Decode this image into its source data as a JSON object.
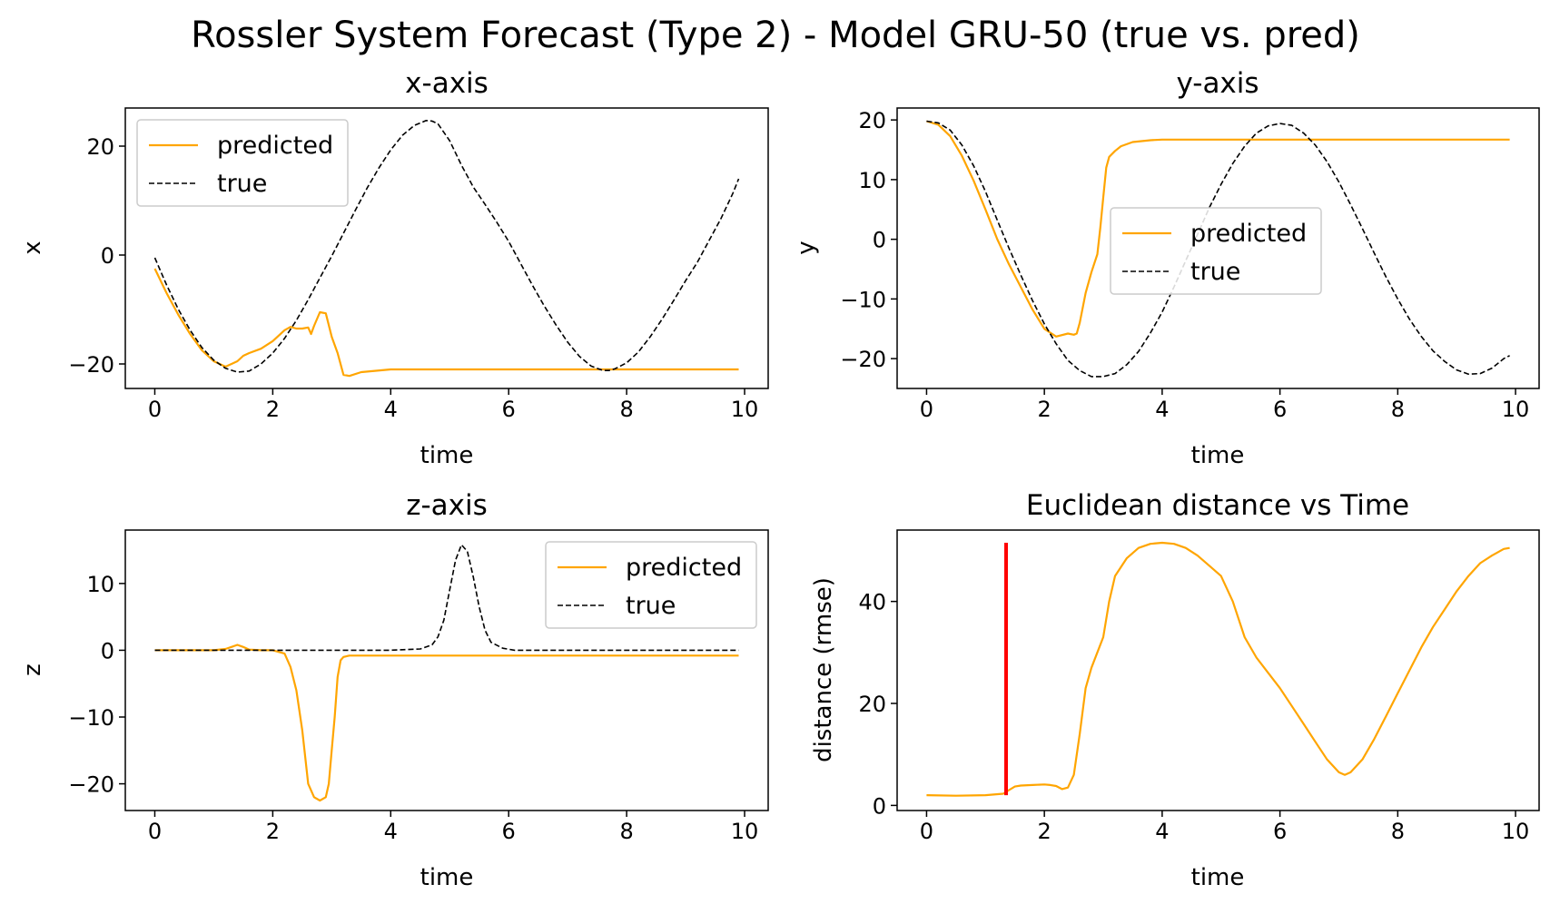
{
  "figure": {
    "title": "Rossler System Forecast (Type 2) - Model GRU-50 (true vs. pred)",
    "colors": {
      "predicted": "#ffa500",
      "true": "#000000",
      "marker": "#ff0000"
    }
  },
  "chart_data": [
    {
      "type": "line",
      "title": "x-axis",
      "xlabel": "time",
      "ylabel": "x",
      "xlim": [
        -0.5,
        10.4
      ],
      "ylim": [
        -24.5,
        27.0
      ],
      "xticks": [
        0,
        2,
        4,
        6,
        8,
        10
      ],
      "yticks": [
        -20,
        0,
        20
      ],
      "legend": {
        "position": "upper-left",
        "entries": [
          "predicted",
          "true"
        ]
      },
      "series": [
        {
          "name": "predicted",
          "style": "solid",
          "color": "#ffa500",
          "x": [
            0,
            0.2,
            0.4,
            0.6,
            0.8,
            1.0,
            1.2,
            1.4,
            1.5,
            1.6,
            1.8,
            2.0,
            2.2,
            2.3,
            2.4,
            2.5,
            2.6,
            2.65,
            2.7,
            2.8,
            2.9,
            3.0,
            3.1,
            3.2,
            3.3,
            3.5,
            4.0,
            5.0,
            6.0,
            7.0,
            8.0,
            9.0,
            9.9
          ],
          "y": [
            -2.5,
            -7,
            -11,
            -14.5,
            -17.5,
            -19.5,
            -20.5,
            -19.5,
            -18.5,
            -18,
            -17.2,
            -15.8,
            -13.8,
            -13.2,
            -13.5,
            -13.5,
            -13.3,
            -14.5,
            -13,
            -10.5,
            -10.7,
            -15,
            -18,
            -22,
            -22.2,
            -21.5,
            -21,
            -21,
            -21,
            -21,
            -21,
            -21,
            -21
          ]
        },
        {
          "name": "true",
          "style": "dashed",
          "color": "#000000",
          "x": [
            0,
            0.2,
            0.4,
            0.6,
            0.8,
            1.0,
            1.2,
            1.4,
            1.6,
            1.8,
            2.0,
            2.2,
            2.4,
            2.6,
            2.8,
            3.0,
            3.2,
            3.4,
            3.6,
            3.8,
            4.0,
            4.2,
            4.4,
            4.6,
            4.7,
            4.8,
            5.0,
            5.2,
            5.4,
            5.6,
            5.8,
            6.0,
            6.2,
            6.4,
            6.6,
            6.8,
            7.0,
            7.2,
            7.4,
            7.6,
            7.7,
            7.8,
            8.0,
            8.2,
            8.4,
            8.6,
            8.8,
            9.0,
            9.2,
            9.4,
            9.6,
            9.8,
            9.9
          ],
          "y": [
            -0.5,
            -5.5,
            -10,
            -13.8,
            -17,
            -19.3,
            -20.8,
            -21.5,
            -21.3,
            -20,
            -18,
            -15.3,
            -12,
            -8.2,
            -4.2,
            -0.2,
            4,
            8.2,
            12.3,
            16,
            19.3,
            22,
            23.8,
            24.7,
            24.6,
            24.1,
            21,
            16.5,
            12.5,
            9.3,
            6,
            2.5,
            -1.5,
            -5.5,
            -9.3,
            -12.8,
            -16,
            -18.6,
            -20.4,
            -21.2,
            -21.2,
            -20.9,
            -19.8,
            -17.8,
            -15,
            -11.8,
            -8.3,
            -4.7,
            -1.3,
            2.7,
            6.7,
            11.3,
            14
          ]
        }
      ]
    },
    {
      "type": "line",
      "title": "y-axis",
      "xlabel": "time",
      "ylabel": "y",
      "xlim": [
        -0.5,
        10.4
      ],
      "ylim": [
        -25.0,
        22.0
      ],
      "xticks": [
        0,
        2,
        4,
        6,
        8,
        10
      ],
      "yticks": [
        -20,
        -10,
        0,
        10,
        20
      ],
      "legend": {
        "position": "center",
        "entries": [
          "predicted",
          "true"
        ]
      },
      "series": [
        {
          "name": "predicted",
          "style": "solid",
          "color": "#ffa500",
          "x": [
            0,
            0.2,
            0.4,
            0.6,
            0.8,
            1.0,
            1.2,
            1.4,
            1.6,
            1.8,
            2.0,
            2.2,
            2.4,
            2.5,
            2.55,
            2.6,
            2.7,
            2.8,
            2.9,
            2.95,
            3.0,
            3.05,
            3.1,
            3.2,
            3.3,
            3.5,
            3.8,
            4.0,
            5.0,
            6.0,
            7.0,
            8.0,
            9.0,
            9.9
          ],
          "y": [
            19.8,
            19.2,
            17.3,
            14,
            9.8,
            5,
            0,
            -4.2,
            -8,
            -11.8,
            -15,
            -16.3,
            -15.8,
            -16,
            -15.8,
            -14,
            -9,
            -5.5,
            -2.5,
            2,
            7,
            12,
            13.8,
            14.8,
            15.6,
            16.3,
            16.6,
            16.7,
            16.7,
            16.7,
            16.7,
            16.7,
            16.7,
            16.7
          ]
        },
        {
          "name": "true",
          "style": "dashed",
          "color": "#000000",
          "x": [
            0,
            0.2,
            0.4,
            0.6,
            0.8,
            1.0,
            1.2,
            1.4,
            1.6,
            1.8,
            2.0,
            2.2,
            2.4,
            2.6,
            2.8,
            3.0,
            3.2,
            3.4,
            3.6,
            3.8,
            4.0,
            4.2,
            4.4,
            4.6,
            4.8,
            5.0,
            5.2,
            5.4,
            5.6,
            5.8,
            6.0,
            6.2,
            6.4,
            6.6,
            6.8,
            7.0,
            7.2,
            7.4,
            7.6,
            7.8,
            8.0,
            8.2,
            8.4,
            8.6,
            8.8,
            9.0,
            9.2,
            9.4,
            9.6,
            9.8,
            9.9
          ],
          "y": [
            19.8,
            19.5,
            18.3,
            15.8,
            12.3,
            8,
            3.2,
            -1.5,
            -6,
            -10.3,
            -14.2,
            -17.5,
            -20.3,
            -22,
            -23,
            -23,
            -22.5,
            -21,
            -18.8,
            -15.7,
            -12.2,
            -8,
            -3.6,
            0.8,
            5.3,
            9.2,
            12.7,
            15.6,
            17.8,
            19,
            19.4,
            19.1,
            17.8,
            15.8,
            13,
            9.6,
            5.8,
            1.8,
            -2.3,
            -6.3,
            -10,
            -13.4,
            -16.3,
            -18.7,
            -20.5,
            -21.9,
            -22.6,
            -22.5,
            -21.6,
            -20,
            -19.5
          ]
        }
      ]
    },
    {
      "type": "line",
      "title": "z-axis",
      "xlabel": "time",
      "ylabel": "z",
      "xlim": [
        -0.5,
        10.4
      ],
      "ylim": [
        -24.0,
        18.0
      ],
      "xticks": [
        0,
        2,
        4,
        6,
        8,
        10
      ],
      "yticks": [
        -20,
        -10,
        0,
        10
      ],
      "legend": {
        "position": "upper-right",
        "entries": [
          "predicted",
          "true"
        ]
      },
      "series": [
        {
          "name": "predicted",
          "style": "solid",
          "color": "#ffa500",
          "x": [
            0,
            1.0,
            1.2,
            1.3,
            1.4,
            1.5,
            1.6,
            1.8,
            2.0,
            2.2,
            2.3,
            2.4,
            2.5,
            2.6,
            2.7,
            2.8,
            2.9,
            2.95,
            3.0,
            3.05,
            3.1,
            3.15,
            3.2,
            3.3,
            3.5,
            4.0,
            5.0,
            6.0,
            7.0,
            8.0,
            9.0,
            9.9
          ],
          "y": [
            0,
            0,
            0.2,
            0.5,
            0.8,
            0.5,
            0.1,
            0,
            0,
            -0.5,
            -2.5,
            -6,
            -12,
            -20,
            -22,
            -22.5,
            -22,
            -20,
            -15,
            -10,
            -4,
            -1.5,
            -1,
            -0.8,
            -0.8,
            -0.8,
            -0.8,
            -0.8,
            -0.8,
            -0.8,
            -0.8,
            -0.8
          ]
        },
        {
          "name": "true",
          "style": "dashed",
          "color": "#000000",
          "x": [
            0,
            1.0,
            2.0,
            3.0,
            4.0,
            4.5,
            4.7,
            4.8,
            4.9,
            5.0,
            5.1,
            5.2,
            5.3,
            5.4,
            5.5,
            5.6,
            5.7,
            5.9,
            6.1,
            7.0,
            8.0,
            9.0,
            9.9
          ],
          "y": [
            0,
            0,
            0,
            0,
            0,
            0.2,
            0.8,
            2,
            4.5,
            9,
            13.5,
            15.8,
            14.8,
            11,
            6.5,
            3,
            1.2,
            0.3,
            0,
            0,
            0,
            0,
            0
          ]
        }
      ]
    },
    {
      "type": "line",
      "title": "Euclidean distance vs Time",
      "xlabel": "time",
      "ylabel": "distance (rmse)",
      "xlim": [
        -0.5,
        10.4
      ],
      "ylim": [
        -1.0,
        54.0
      ],
      "xticks": [
        0,
        2,
        4,
        6,
        8,
        10
      ],
      "yticks": [
        0,
        20,
        40
      ],
      "vline": {
        "x": 1.35,
        "y": [
          2,
          51.5
        ],
        "color": "#ff0000"
      },
      "series": [
        {
          "style": "solid",
          "color": "#ffa500",
          "x": [
            0,
            0.5,
            1.0,
            1.3,
            1.4,
            1.5,
            1.6,
            1.8,
            2.0,
            2.1,
            2.2,
            2.3,
            2.4,
            2.5,
            2.6,
            2.7,
            2.8,
            3.0,
            3.1,
            3.2,
            3.4,
            3.6,
            3.8,
            4.0,
            4.2,
            4.4,
            4.6,
            4.8,
            5.0,
            5.2,
            5.4,
            5.6,
            5.8,
            6.0,
            6.2,
            6.4,
            6.6,
            6.8,
            7.0,
            7.1,
            7.2,
            7.4,
            7.6,
            7.8,
            8.0,
            8.2,
            8.4,
            8.6,
            8.8,
            9.0,
            9.2,
            9.4,
            9.6,
            9.8,
            9.9
          ],
          "y": [
            2,
            1.9,
            2,
            2.3,
            3,
            3.7,
            3.9,
            4,
            4.1,
            4,
            3.8,
            3.2,
            3.5,
            6,
            14,
            23,
            27,
            33,
            40,
            45,
            48.5,
            50.5,
            51.3,
            51.5,
            51.3,
            50.5,
            49,
            47,
            45,
            40,
            33,
            29,
            26,
            23,
            19.5,
            16,
            12.5,
            9,
            6.5,
            6,
            6.5,
            9,
            13,
            17.5,
            22,
            26.5,
            31,
            35,
            38.5,
            42,
            45,
            47.5,
            49,
            50.3,
            50.5
          ]
        }
      ]
    }
  ]
}
